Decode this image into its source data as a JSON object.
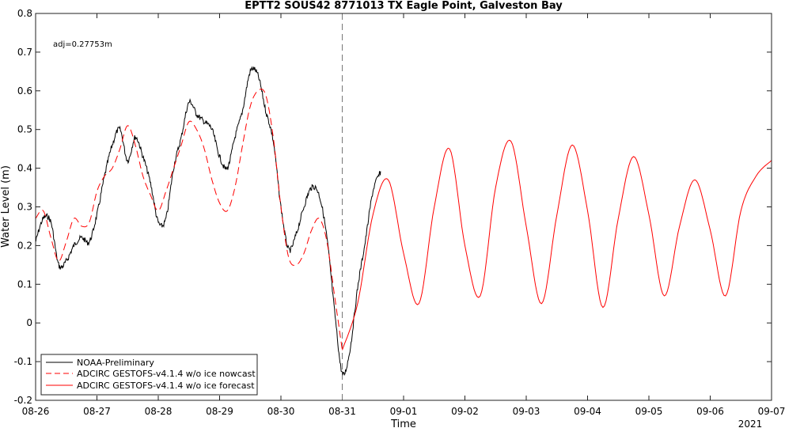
{
  "chart_data": {
    "type": "line",
    "title": "EPTT2 SOUS42 8771013 TX Eagle Point, Galveston Bay",
    "xlabel": "Time",
    "ylabel": "Water Level (m)",
    "annotation": "adj=0.27753m",
    "year_label": "2021",
    "xlim": [
      "08-26",
      "09-07"
    ],
    "ylim": [
      -0.2,
      0.8
    ],
    "grid": false,
    "legend_position": "bottom-left",
    "x_ticks": [
      "08-26",
      "08-27",
      "08-28",
      "08-29",
      "08-30",
      "08-31",
      "09-01",
      "09-02",
      "09-03",
      "09-04",
      "09-05",
      "09-06",
      "09-07"
    ],
    "y_ticks": [
      "-0.2",
      "-0.1",
      "0",
      "0.1",
      "0.2",
      "0.3",
      "0.4",
      "0.5",
      "0.6",
      "0.7",
      "0.8"
    ],
    "forecast_start": "08-31",
    "series": [
      {
        "name": "NOAA-Preliminary",
        "color": "#000000",
        "dash": "solid",
        "x": [
          "08-26 00:00",
          "08-26 03:00",
          "08-26 06:00",
          "08-26 09:00",
          "08-26 12:00",
          "08-26 15:00",
          "08-26 18:00",
          "08-26 21:00",
          "08-27 00:00",
          "08-27 03:00",
          "08-27 06:00",
          "08-27 09:00",
          "08-27 12:00",
          "08-27 15:00",
          "08-27 18:00",
          "08-27 21:00",
          "08-28 00:00",
          "08-28 03:00",
          "08-28 06:00",
          "08-28 09:00",
          "08-28 12:00",
          "08-28 15:00",
          "08-28 18:00",
          "08-28 21:00",
          "08-29 00:00",
          "08-29 03:00",
          "08-29 06:00",
          "08-29 09:00",
          "08-29 12:00",
          "08-29 15:00",
          "08-29 18:00",
          "08-29 21:00",
          "08-30 00:00",
          "08-30 03:00",
          "08-30 06:00",
          "08-30 09:00",
          "08-30 12:00",
          "08-30 15:00",
          "08-30 18:00",
          "08-30 21:00",
          "08-31 00:00",
          "08-31 03:00",
          "08-31 06:00",
          "08-31 09:00",
          "08-31 12:00",
          "08-31 15:00"
        ],
        "values": [
          0.21,
          0.27,
          0.26,
          0.15,
          0.16,
          0.2,
          0.22,
          0.21,
          0.28,
          0.38,
          0.46,
          0.5,
          0.42,
          0.48,
          0.43,
          0.36,
          0.26,
          0.27,
          0.4,
          0.48,
          0.57,
          0.54,
          0.52,
          0.5,
          0.43,
          0.4,
          0.48,
          0.55,
          0.65,
          0.64,
          0.55,
          0.47,
          0.3,
          0.19,
          0.23,
          0.3,
          0.35,
          0.33,
          0.22,
          0.03,
          -0.13,
          -0.07,
          0.09,
          0.21,
          0.34,
          0.39
        ]
      },
      {
        "name": "ADCIRC GESTOFS-v4.1.4 w/o ice nowcast",
        "color": "#ff0000",
        "dash": "dashed",
        "x": [
          "08-26 00:00",
          "08-26 03:00",
          "08-26 06:00",
          "08-26 09:00",
          "08-26 12:00",
          "08-26 15:00",
          "08-26 18:00",
          "08-26 21:00",
          "08-27 00:00",
          "08-27 03:00",
          "08-27 06:00",
          "08-27 09:00",
          "08-27 12:00",
          "08-27 15:00",
          "08-27 18:00",
          "08-27 21:00",
          "08-28 00:00",
          "08-28 03:00",
          "08-28 06:00",
          "08-28 09:00",
          "08-28 12:00",
          "08-28 15:00",
          "08-28 18:00",
          "08-28 21:00",
          "08-29 00:00",
          "08-29 03:00",
          "08-29 06:00",
          "08-29 09:00",
          "08-29 12:00",
          "08-29 15:00",
          "08-29 18:00",
          "08-29 21:00",
          "08-30 00:00",
          "08-30 03:00",
          "08-30 06:00",
          "08-30 09:00",
          "08-30 12:00",
          "08-30 15:00",
          "08-30 18:00",
          "08-30 21:00",
          "08-31 00:00"
        ],
        "values": [
          0.27,
          0.29,
          0.22,
          0.16,
          0.21,
          0.27,
          0.25,
          0.26,
          0.34,
          0.38,
          0.4,
          0.45,
          0.51,
          0.46,
          0.38,
          0.33,
          0.29,
          0.34,
          0.4,
          0.46,
          0.52,
          0.5,
          0.45,
          0.37,
          0.31,
          0.29,
          0.35,
          0.46,
          0.56,
          0.6,
          0.59,
          0.48,
          0.3,
          0.17,
          0.15,
          0.18,
          0.24,
          0.27,
          0.21,
          0.07,
          -0.07
        ]
      },
      {
        "name": "ADCIRC GESTOFS-v4.1.4 w/o ice forecast",
        "color": "#ff0000",
        "dash": "solid",
        "x": [
          "08-31 00:00",
          "08-31 06:00",
          "08-31 12:00",
          "08-31 18:00",
          "09-01 00:00",
          "09-01 06:00",
          "09-01 12:00",
          "09-01 18:00",
          "09-02 00:00",
          "09-02 06:00",
          "09-02 12:00",
          "09-02 18:00",
          "09-03 00:00",
          "09-03 06:00",
          "09-03 12:00",
          "09-03 18:00",
          "09-04 00:00",
          "09-04 06:00",
          "09-04 12:00",
          "09-04 18:00",
          "09-05 00:00",
          "09-05 06:00",
          "09-05 12:00",
          "09-05 18:00",
          "09-06 00:00",
          "09-06 06:00",
          "09-06 12:00",
          "09-06 18:00",
          "09-07 00:00"
        ],
        "values": [
          -0.07,
          0.05,
          0.28,
          0.37,
          0.18,
          0.05,
          0.3,
          0.45,
          0.2,
          0.07,
          0.35,
          0.47,
          0.25,
          0.05,
          0.28,
          0.46,
          0.29,
          0.04,
          0.27,
          0.43,
          0.28,
          0.07,
          0.25,
          0.37,
          0.24,
          0.07,
          0.29,
          0.38,
          0.42
        ]
      }
    ]
  }
}
